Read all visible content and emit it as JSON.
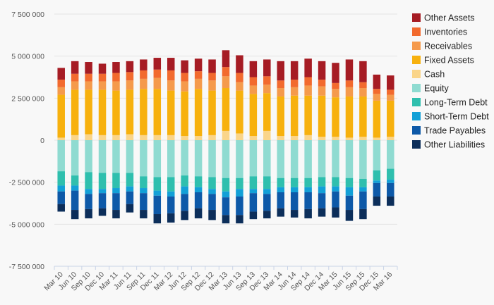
{
  "chart_data": {
    "type": "bar",
    "stacked": true,
    "categories": [
      "Mar 10",
      "Jun 10",
      "Sep 10",
      "Dec 10",
      "Mar 11",
      "Jun 11",
      "Sep 11",
      "Dec 11",
      "Mar 12",
      "Jun 12",
      "Sep 12",
      "Dec 12",
      "Mar 13",
      "Jun 13",
      "Sep 13",
      "Dec 13",
      "Mar 14",
      "Jun 14",
      "Sep 14",
      "Dec 14",
      "Mar 15",
      "Jun 15",
      "Sep 15",
      "Dec 15",
      "Mar 16"
    ],
    "ylim": [
      -7500000,
      7500000
    ],
    "yticks": [
      -7500000,
      -5000000,
      -2500000,
      0,
      2500000,
      5000000,
      7500000
    ],
    "ytick_labels": [
      "-7 500 000",
      "-5 000 000",
      "-2 500 000",
      "0",
      "2 500 000",
      "5 000 000",
      "7 500 000"
    ],
    "grid": true,
    "legend_position": "right",
    "series": [
      {
        "name": "Other Assets",
        "side": "positive",
        "color": "#a61c24",
        "values": [
          700000,
          750000,
          700000,
          600000,
          650000,
          650000,
          650000,
          700000,
          750000,
          750000,
          750000,
          800000,
          1000000,
          1050000,
          950000,
          1000000,
          1150000,
          1100000,
          1100000,
          1100000,
          1200000,
          1250000,
          1250000,
          850000,
          850000
        ]
      },
      {
        "name": "Inventories",
        "side": "positive",
        "color": "#f26a2e",
        "values": [
          450000,
          450000,
          450000,
          450000,
          500000,
          500000,
          500000,
          500000,
          600000,
          500000,
          450000,
          450000,
          550000,
          550000,
          500000,
          500000,
          450000,
          450000,
          500000,
          400000,
          350000,
          400000,
          350000,
          300000,
          300000
        ]
      },
      {
        "name": "Receivables",
        "side": "positive",
        "color": "#f59a4c",
        "values": [
          450000,
          500000,
          500000,
          500000,
          550000,
          550000,
          600000,
          650000,
          600000,
          600000,
          600000,
          600000,
          700000,
          500000,
          500000,
          500000,
          500000,
          500000,
          600000,
          550000,
          500000,
          550000,
          500000,
          400000,
          350000
        ]
      },
      {
        "name": "Fixed Assets",
        "side": "positive",
        "color": "#f7b10e",
        "values": [
          2550000,
          2700000,
          2650000,
          2700000,
          2650000,
          2650000,
          2750000,
          2750000,
          2650000,
          2650000,
          2800000,
          2650000,
          2550000,
          2550000,
          2500000,
          2250000,
          2350000,
          2400000,
          2350000,
          2450000,
          2350000,
          2450000,
          2400000,
          2200000,
          2150000
        ]
      },
      {
        "name": "Cash",
        "side": "positive",
        "color": "#fad58a",
        "values": [
          150000,
          300000,
          350000,
          300000,
          300000,
          350000,
          300000,
          300000,
          300000,
          250000,
          250000,
          300000,
          550000,
          400000,
          250000,
          550000,
          250000,
          250000,
          300000,
          200000,
          200000,
          150000,
          200000,
          150000,
          200000
        ]
      },
      {
        "name": "Equity",
        "side": "negative",
        "color": "#8fdbd1",
        "values": [
          -1850000,
          -2100000,
          -1900000,
          -1950000,
          -1950000,
          -1950000,
          -2150000,
          -2200000,
          -2200000,
          -2100000,
          -2150000,
          -2200000,
          -2250000,
          -2250000,
          -2150000,
          -2150000,
          -2250000,
          -2250000,
          -2250000,
          -2200000,
          -2200000,
          -2250000,
          -2300000,
          -1800000,
          -1700000
        ]
      },
      {
        "name": "Long-Term Debt",
        "side": "negative",
        "color": "#2fbfae",
        "values": [
          -850000,
          -600000,
          -1000000,
          -950000,
          -900000,
          -800000,
          -700000,
          -800000,
          -850000,
          -650000,
          -650000,
          -700000,
          -800000,
          -650000,
          -750000,
          -750000,
          -550000,
          -550000,
          -550000,
          -550000,
          -550000,
          -550000,
          -500000,
          -600000,
          -650000
        ]
      },
      {
        "name": "Short-Term Debt",
        "side": "negative",
        "color": "#12a0d7",
        "values": [
          -350000,
          -300000,
          -300000,
          -250000,
          -300000,
          -300000,
          -300000,
          -300000,
          -300000,
          -450000,
          -300000,
          -300000,
          -350000,
          -450000,
          -250000,
          -300000,
          -300000,
          -300000,
          -300000,
          -400000,
          -300000,
          -500000,
          -250000,
          -150000,
          -200000
        ]
      },
      {
        "name": "Trade Payables",
        "side": "negative",
        "color": "#0d59a8",
        "values": [
          -750000,
          -1150000,
          -900000,
          -900000,
          -1000000,
          -750000,
          -1000000,
          -1100000,
          -1000000,
          -1000000,
          -950000,
          -950000,
          -1050000,
          -1100000,
          -1100000,
          -1000000,
          -950000,
          -1050000,
          -1000000,
          -900000,
          -950000,
          -850000,
          -1050000,
          -800000,
          -800000
        ]
      },
      {
        "name": "Other Liabilities",
        "side": "negative",
        "color": "#0c2e5a",
        "values": [
          -450000,
          -550000,
          -550000,
          -450000,
          -500000,
          -500000,
          -500000,
          -550000,
          -550000,
          -550000,
          -600000,
          -600000,
          -500000,
          -500000,
          -450000,
          -450000,
          -500000,
          -450000,
          -550000,
          -500000,
          -600000,
          -650000,
          -600000,
          -550000,
          -550000
        ]
      }
    ]
  }
}
